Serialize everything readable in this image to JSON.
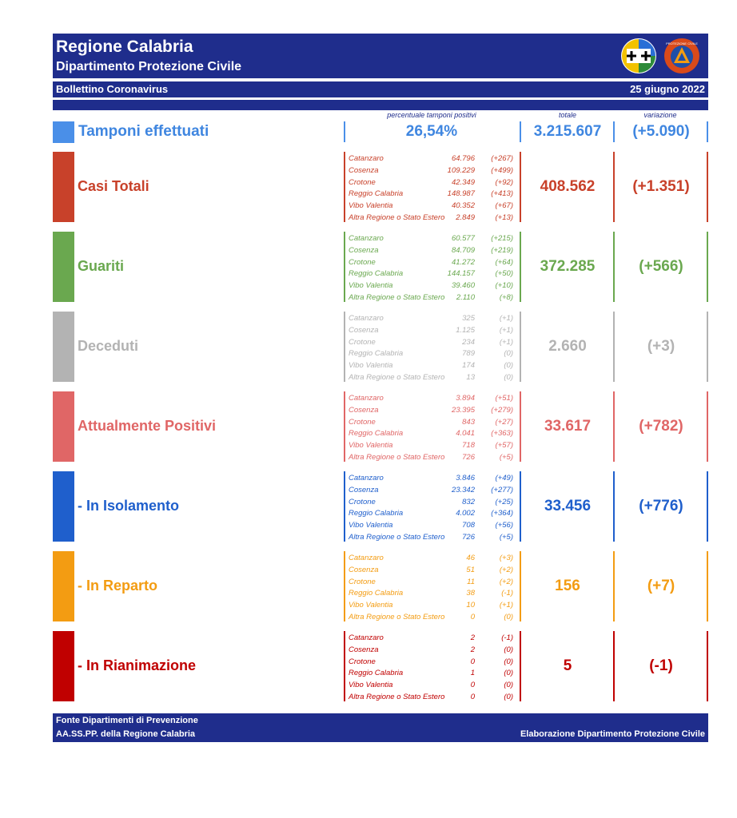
{
  "header": {
    "title": "Regione Calabria",
    "subtitle": "Dipartimento Protezione Civile",
    "bulletin": "Bollettino Coronavirus",
    "date": "25 giugno 2022",
    "logo2_text": "PROTEZIONE CIVILE"
  },
  "columns": {
    "pct_label": "percentuale tamponi positivi",
    "total_label": "totale",
    "var_label": "variazione"
  },
  "tamponi": {
    "label": "Tamponi effettuati",
    "pct": "26,54%",
    "total": "3.215.607",
    "var": "(+5.090)",
    "color": "#4a8fe8"
  },
  "blocks": [
    {
      "label": "Casi Totali",
      "color": "#c8412a",
      "total": "408.562",
      "var": "(+1.351)",
      "rows": [
        {
          "name": "Catanzaro",
          "value": "64.796",
          "delta": "(+267)"
        },
        {
          "name": "Cosenza",
          "value": "109.229",
          "delta": "(+499)"
        },
        {
          "name": "Crotone",
          "value": "42.349",
          "delta": "(+92)"
        },
        {
          "name": "Reggio Calabria",
          "value": "148.987",
          "delta": "(+413)"
        },
        {
          "name": "Vibo Valentia",
          "value": "40.352",
          "delta": "(+67)"
        },
        {
          "name": "Altra Regione o Stato Estero",
          "value": "2.849",
          "delta": "(+13)"
        }
      ]
    },
    {
      "label": "Guariti",
      "color": "#6aa84f",
      "total": "372.285",
      "var": "(+566)",
      "rows": [
        {
          "name": "Catanzaro",
          "value": "60.577",
          "delta": "(+215)"
        },
        {
          "name": "Cosenza",
          "value": "84.709",
          "delta": "(+219)"
        },
        {
          "name": "Crotone",
          "value": "41.272",
          "delta": "(+64)"
        },
        {
          "name": "Reggio Calabria",
          "value": "144.157",
          "delta": "(+50)"
        },
        {
          "name": "Vibo Valentia",
          "value": "39.460",
          "delta": "(+10)"
        },
        {
          "name": "Altra Regione o Stato Estero",
          "value": "2.110",
          "delta": "(+8)"
        }
      ]
    },
    {
      "label": "Deceduti",
      "color": "#b3b3b3",
      "total": "2.660",
      "var": "(+3)",
      "rows": [
        {
          "name": "Catanzaro",
          "value": "325",
          "delta": "(+1)"
        },
        {
          "name": "Cosenza",
          "value": "1.125",
          "delta": "(+1)"
        },
        {
          "name": "Crotone",
          "value": "234",
          "delta": "(+1)"
        },
        {
          "name": "Reggio Calabria",
          "value": "789",
          "delta": "(0)"
        },
        {
          "name": "Vibo Valentia",
          "value": "174",
          "delta": "(0)"
        },
        {
          "name": "Altra Regione o Stato Estero",
          "value": "13",
          "delta": "(0)"
        }
      ]
    },
    {
      "label": "Attualmente Positivi",
      "color": "#e06666",
      "total": "33.617",
      "var": "(+782)",
      "rows": [
        {
          "name": "Catanzaro",
          "value": "3.894",
          "delta": "(+51)"
        },
        {
          "name": "Cosenza",
          "value": "23.395",
          "delta": "(+279)"
        },
        {
          "name": "Crotone",
          "value": "843",
          "delta": "(+27)"
        },
        {
          "name": "Reggio Calabria",
          "value": "4.041",
          "delta": "(+363)"
        },
        {
          "name": "Vibo Valentia",
          "value": "718",
          "delta": "(+57)"
        },
        {
          "name": "Altra Regione o Stato Estero",
          "value": "726",
          "delta": "(+5)"
        }
      ]
    },
    {
      "label": "- In Isolamento",
      "color": "#1f5fcc",
      "total": "33.456",
      "var": "(+776)",
      "rows": [
        {
          "name": "Catanzaro",
          "value": "3.846",
          "delta": "(+49)"
        },
        {
          "name": "Cosenza",
          "value": "23.342",
          "delta": "(+277)"
        },
        {
          "name": "Crotone",
          "value": "832",
          "delta": "(+25)"
        },
        {
          "name": "Reggio Calabria",
          "value": "4.002",
          "delta": "(+364)"
        },
        {
          "name": "Vibo Valentia",
          "value": "708",
          "delta": "(+56)"
        },
        {
          "name": "Altra Regione o Stato Estero",
          "value": "726",
          "delta": "(+5)"
        }
      ]
    },
    {
      "label": "- In Reparto",
      "color": "#f39c12",
      "total": "156",
      "var": "(+7)",
      "rows": [
        {
          "name": "Catanzaro",
          "value": "46",
          "delta": "(+3)"
        },
        {
          "name": "Cosenza",
          "value": "51",
          "delta": "(+2)"
        },
        {
          "name": "Crotone",
          "value": "11",
          "delta": "(+2)"
        },
        {
          "name": "Reggio Calabria",
          "value": "38",
          "delta": "(-1)"
        },
        {
          "name": "Vibo Valentia",
          "value": "10",
          "delta": "(+1)"
        },
        {
          "name": "Altra Regione o Stato Estero",
          "value": "0",
          "delta": "(0)"
        }
      ]
    },
    {
      "label": "- In Rianimazione",
      "color": "#c00000",
      "total": "5",
      "var": "(-1)",
      "rows": [
        {
          "name": "Catanzaro",
          "value": "2",
          "delta": "(-1)"
        },
        {
          "name": "Cosenza",
          "value": "2",
          "delta": "(0)"
        },
        {
          "name": "Crotone",
          "value": "0",
          "delta": "(0)"
        },
        {
          "name": "Reggio Calabria",
          "value": "1",
          "delta": "(0)"
        },
        {
          "name": "Vibo Valentia",
          "value": "0",
          "delta": "(0)"
        },
        {
          "name": "Altra Regione o Stato Estero",
          "value": "0",
          "delta": "(0)"
        }
      ]
    }
  ],
  "footer": {
    "line1": "Fonte Dipartimenti di Prevenzione",
    "line2": "AA.SS.PP.  della Regione Calabria",
    "right": "Elaborazione Dipartimento Protezione Civile"
  }
}
